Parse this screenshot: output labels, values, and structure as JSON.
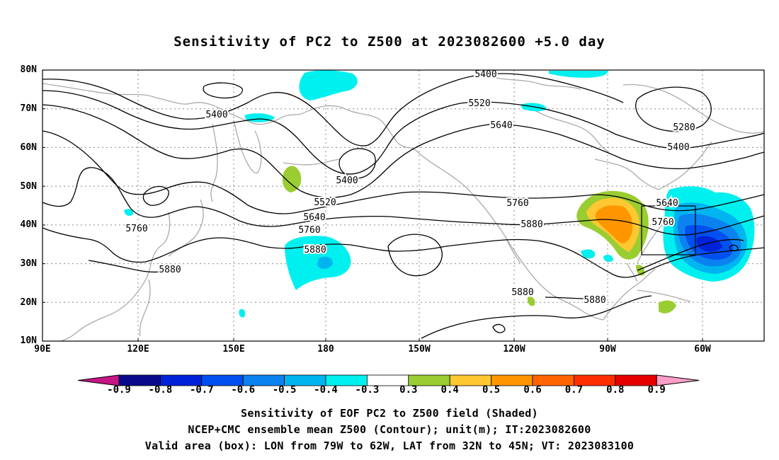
{
  "title": "Sensitivity of PC2 to Z500 at 2023082600 +5.0 day",
  "lat_labels": [
    "80N",
    "70N",
    "60N",
    "50N",
    "40N",
    "30N",
    "20N",
    "10N"
  ],
  "lon_labels": [
    "90E",
    "120E",
    "150E",
    "180",
    "150W",
    "120W",
    "90W",
    "60W"
  ],
  "contour_labels": [
    "5400",
    "5520",
    "5640",
    "5400",
    "5280",
    "5400",
    "5400",
    "5520",
    "5640",
    "5760",
    "5880",
    "5760",
    "5880",
    "5760",
    "5640",
    "5760",
    "5880",
    "5880",
    "5880"
  ],
  "colorbar": {
    "ticks": [
      "-0.9",
      "-0.8",
      "-0.7",
      "-0.6",
      "-0.5",
      "-0.4",
      "-0.3",
      "0.3",
      "0.4",
      "0.5",
      "0.6",
      "0.7",
      "0.8",
      "0.9"
    ],
    "colors": [
      "#0a0a8c",
      "#0022d8",
      "#0050f0",
      "#0c82f0",
      "#00b4f0",
      "#00f0f0",
      "#ffffff",
      "#9acd32",
      "#ffc832",
      "#ff9600",
      "#ff6400",
      "#ff2d00",
      "#e60000"
    ],
    "low_color": "#c71585",
    "high_color": "#ff9ec8"
  },
  "captions": [
    "Sensitivity of EOF PC2 to Z500 field (Shaded)",
    "NCEP+CMC ensemble mean Z500 (Contour); unit(m); IT:2023082600",
    "Valid area (box): LON from 79W to 62W, LAT from 32N to 45N; VT: 2023083100"
  ]
}
